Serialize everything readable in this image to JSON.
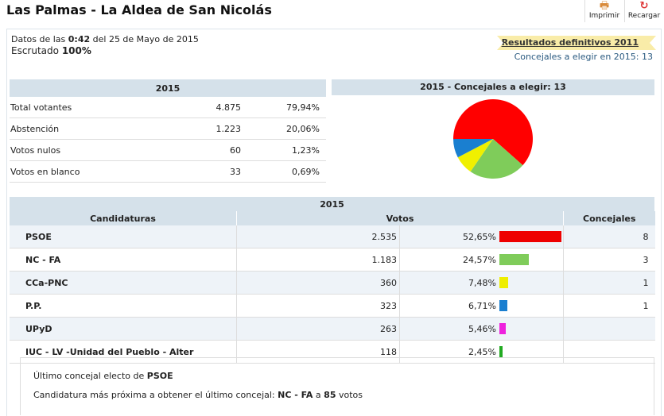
{
  "title": "Las Palmas - La Aldea de San Nicolás",
  "toolbar": {
    "print": "Imprimir",
    "reload": "Recargar",
    "print_icon": "printer-icon",
    "reload_icon": "reload-icon"
  },
  "info": {
    "prefix": "Datos de las",
    "time": "0:42",
    "date": "del 25 de Mayo de 2015",
    "scrutiny_label": "Escrutado",
    "scrutiny": "100%"
  },
  "ribbon": "Resultados definitivos 2011",
  "councillors_line": "Concejales a elegir en 2015: 13",
  "summary": {
    "header": "2015",
    "rows": [
      {
        "label": "Total votantes",
        "value": "4.875",
        "pct": "79,94%"
      },
      {
        "label": "Abstención",
        "value": "1.223",
        "pct": "20,06%"
      },
      {
        "label": "Votos nulos",
        "value": "60",
        "pct": "1,23%"
      },
      {
        "label": "Votos en blanco",
        "value": "33",
        "pct": "0,69%"
      }
    ]
  },
  "pie": {
    "title": "2015 - Concejales a elegir: 13",
    "slices": [
      {
        "party": "PSOE",
        "seats": 8,
        "color": "#ff0000"
      },
      {
        "party": "NC - FA",
        "seats": 3,
        "color": "#7fcc5a"
      },
      {
        "party": "CCa-PNC",
        "seats": 1,
        "color": "#f0f000"
      },
      {
        "party": "P.P.",
        "seats": 1,
        "color": "#1a7fd0"
      }
    ]
  },
  "results": {
    "year": "2015",
    "col_party": "Candidaturas",
    "col_votes": "Votos",
    "col_seats": "Concejales",
    "rows": [
      {
        "party": "PSOE",
        "votes": "2.535",
        "pct": "52,65%",
        "pct_value": 52.65,
        "seats": "8",
        "color": "#ee0000"
      },
      {
        "party": "NC - FA",
        "votes": "1.183",
        "pct": "24,57%",
        "pct_value": 24.57,
        "seats": "3",
        "color": "#7fcc5a"
      },
      {
        "party": "CCa-PNC",
        "votes": "360",
        "pct": "7,48%",
        "pct_value": 7.48,
        "seats": "1",
        "color": "#eeee00"
      },
      {
        "party": "P.P.",
        "votes": "323",
        "pct": "6,71%",
        "pct_value": 6.71,
        "seats": "1",
        "color": "#1a7fd0"
      },
      {
        "party": "UPyD",
        "votes": "263",
        "pct": "5,46%",
        "pct_value": 5.46,
        "seats": "",
        "color": "#ee22dd"
      },
      {
        "party": "IUC - LV -Unidad del Pueblo - Alter",
        "votes": "118",
        "pct": "2,45%",
        "pct_value": 2.45,
        "seats": "",
        "color": "#22aa22"
      }
    ]
  },
  "note": {
    "last_prefix": "Último concejal electo de",
    "last_party": "PSOE",
    "next_prefix": "Candidatura más próxima a obtener el último concejal:",
    "next_party": "NC - FA",
    "next_mid": "a",
    "next_votes": "85",
    "next_suffix": "votos"
  }
}
